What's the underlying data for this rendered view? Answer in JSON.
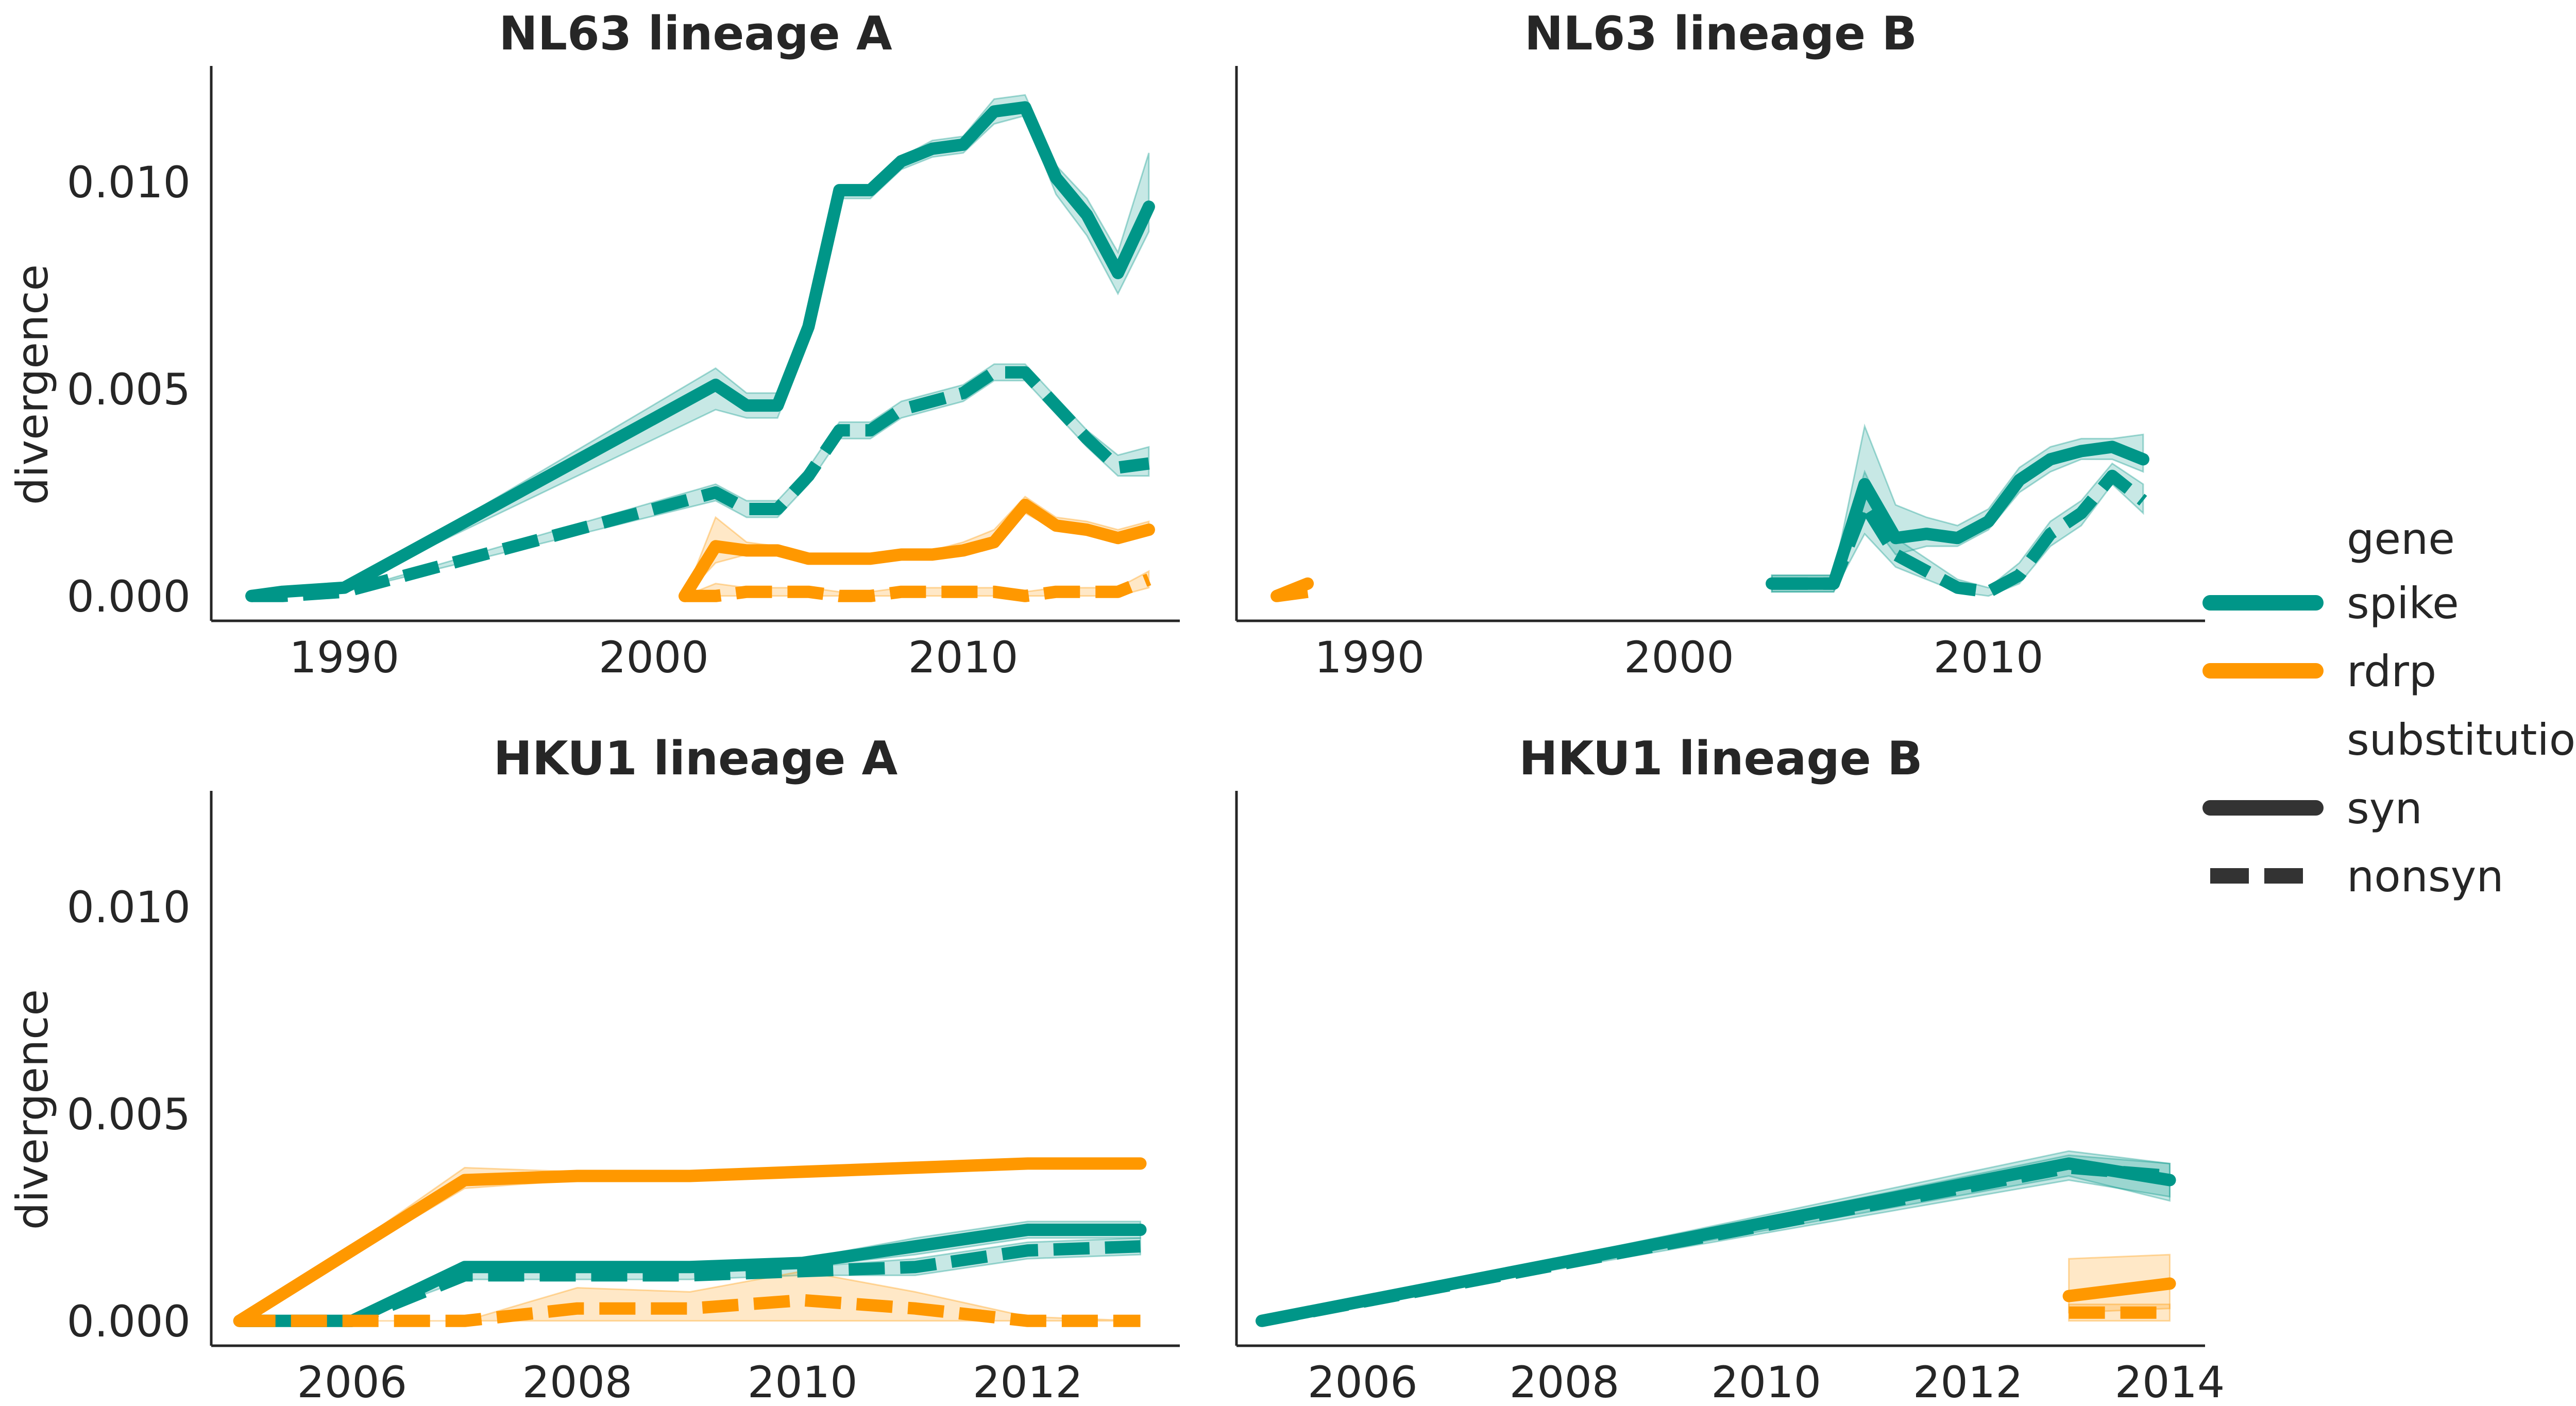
{
  "colors": {
    "spike": "#009688",
    "rdrp": "#FF9800",
    "legend_style": "#333333"
  },
  "legend": {
    "gene_title": "gene",
    "gene_items": [
      {
        "label": "spike",
        "color_key": "spike"
      },
      {
        "label": "rdrp",
        "color_key": "rdrp"
      }
    ],
    "substitution_title": "substitution",
    "substitution_items": [
      {
        "label": "syn",
        "style": "solid"
      },
      {
        "label": "nonsyn",
        "style": "dashed"
      }
    ]
  },
  "chart_data": [
    {
      "type": "line",
      "title": "NL63 lineage A",
      "ylabel": "divergence",
      "xlabel": "",
      "xlim": [
        1985.7,
        2017.0
      ],
      "ylim": [
        -0.0006,
        0.0128
      ],
      "xticks": [
        1990,
        2000,
        2010
      ],
      "yticks": [
        "0.000",
        "0.005",
        "0.010"
      ],
      "series": [
        {
          "gene": "spike",
          "substitution": "syn",
          "x": [
            1987,
            1988,
            1990,
            2002,
            2003,
            2004,
            2005,
            2006,
            2007,
            2008,
            2009,
            2010,
            2011,
            2012,
            2013,
            2014,
            2015,
            2016
          ],
          "y": [
            0.0,
            0.0001,
            0.0002,
            0.0051,
            0.0046,
            0.0046,
            0.0065,
            0.0098,
            0.0098,
            0.0105,
            0.0108,
            0.0109,
            0.0117,
            0.0118,
            0.0101,
            0.0092,
            0.0078,
            0.0094
          ],
          "lower": [
            0.0,
            0.0001,
            0.0002,
            0.0045,
            0.0043,
            0.0043,
            0.0062,
            0.0096,
            0.0096,
            0.0103,
            0.0106,
            0.0107,
            0.0114,
            0.0116,
            0.0097,
            0.0087,
            0.0073,
            0.0088
          ],
          "upper": [
            0.0,
            0.0001,
            0.0002,
            0.0055,
            0.0049,
            0.0049,
            0.0067,
            0.0099,
            0.0099,
            0.0106,
            0.011,
            0.0111,
            0.012,
            0.0121,
            0.0104,
            0.0096,
            0.0083,
            0.0107
          ]
        },
        {
          "gene": "spike",
          "substitution": "nonsyn",
          "x": [
            1987,
            1988,
            1990,
            2002,
            2003,
            2004,
            2005,
            2006,
            2007,
            2008,
            2009,
            2010,
            2011,
            2012,
            2013,
            2014,
            2015,
            2016
          ],
          "y": [
            0.0,
            0.0,
            0.0001,
            0.0025,
            0.0021,
            0.0021,
            0.0029,
            0.004,
            0.004,
            0.0045,
            0.0047,
            0.0049,
            0.0054,
            0.0054,
            0.0046,
            0.0038,
            0.0031,
            0.0032
          ],
          "lower": [
            0.0,
            0.0,
            0.0001,
            0.0023,
            0.0019,
            0.0019,
            0.0027,
            0.0038,
            0.0038,
            0.0043,
            0.0045,
            0.0047,
            0.0052,
            0.0052,
            0.0044,
            0.0036,
            0.0029,
            0.0029
          ],
          "upper": [
            0.0,
            0.0,
            0.0001,
            0.0027,
            0.0023,
            0.0023,
            0.0031,
            0.0042,
            0.0042,
            0.0047,
            0.0049,
            0.0051,
            0.0056,
            0.0056,
            0.0048,
            0.004,
            0.0034,
            0.0036
          ]
        },
        {
          "gene": "rdrp",
          "substitution": "syn",
          "x": [
            2001,
            2002,
            2003,
            2004,
            2005,
            2006,
            2007,
            2008,
            2009,
            2010,
            2011,
            2012,
            2013,
            2014,
            2015,
            2016
          ],
          "y": [
            0.0,
            0.0012,
            0.0011,
            0.0011,
            0.0009,
            0.0009,
            0.0009,
            0.001,
            0.001,
            0.0011,
            0.0013,
            0.0022,
            0.0017,
            0.0016,
            0.0014,
            0.0016
          ],
          "lower": [
            0.0,
            0.0008,
            0.001,
            0.001,
            0.0008,
            0.0008,
            0.0008,
            0.0009,
            0.0009,
            0.001,
            0.0012,
            0.002,
            0.0016,
            0.0015,
            0.0013,
            0.0015
          ],
          "upper": [
            0.0,
            0.0019,
            0.0013,
            0.0012,
            0.001,
            0.001,
            0.001,
            0.0011,
            0.0011,
            0.0013,
            0.0016,
            0.0024,
            0.0019,
            0.0018,
            0.0016,
            0.0018
          ]
        },
        {
          "gene": "rdrp",
          "substitution": "nonsyn",
          "x": [
            2001,
            2002,
            2003,
            2004,
            2005,
            2006,
            2007,
            2008,
            2009,
            2010,
            2011,
            2012,
            2013,
            2014,
            2015,
            2016
          ],
          "y": [
            0.0,
            0.0,
            0.0001,
            0.0001,
            0.0001,
            0.0,
            0.0,
            0.0001,
            0.0001,
            0.0001,
            0.0001,
            0.0,
            0.0001,
            0.0001,
            0.0001,
            0.0004
          ],
          "lower": [
            0.0,
            0.0,
            0.0,
            0.0,
            0.0,
            0.0,
            0.0,
            0.0,
            0.0,
            0.0,
            0.0,
            0.0,
            0.0,
            0.0,
            0.0,
            0.0002
          ],
          "upper": [
            0.0,
            0.0003,
            0.0002,
            0.0002,
            0.0002,
            0.0001,
            0.0001,
            0.0002,
            0.0002,
            0.0002,
            0.0002,
            0.0001,
            0.0002,
            0.0002,
            0.0002,
            0.0006
          ]
        }
      ]
    },
    {
      "type": "line",
      "title": "NL63 lineage B",
      "ylabel": "",
      "xlabel": "",
      "xlim": [
        1985.7,
        2017.0
      ],
      "ylim": [
        -0.0006,
        0.0128
      ],
      "xticks": [
        1990,
        2000,
        2010
      ],
      "yticks": [],
      "series": [
        {
          "gene": "spike",
          "substitution": "syn",
          "x": [
            2003,
            2004,
            2005,
            2006,
            2007,
            2008,
            2009,
            2010,
            2011,
            2012,
            2013,
            2014,
            2015
          ],
          "y": [
            0.0003,
            0.0003,
            0.0003,
            0.0027,
            0.0014,
            0.0015,
            0.0014,
            0.0018,
            0.0028,
            0.0033,
            0.0035,
            0.0036,
            0.0033
          ],
          "lower": [
            0.0001,
            0.0001,
            0.0001,
            0.002,
            0.001,
            0.0012,
            0.0012,
            0.0016,
            0.0025,
            0.003,
            0.0033,
            0.0033,
            0.003
          ],
          "upper": [
            0.0005,
            0.0005,
            0.0005,
            0.0041,
            0.0022,
            0.0019,
            0.0017,
            0.0021,
            0.0031,
            0.0036,
            0.0038,
            0.0038,
            0.0039
          ]
        },
        {
          "gene": "spike",
          "substitution": "nonsyn",
          "x": [
            2003,
            2004,
            2005,
            2006,
            2007,
            2008,
            2009,
            2010,
            2011,
            2012,
            2013,
            2014,
            2015
          ],
          "y": [
            0.0003,
            0.0003,
            0.0003,
            0.0022,
            0.001,
            0.0006,
            0.0002,
            0.0001,
            0.0005,
            0.0015,
            0.002,
            0.0029,
            0.0023
          ],
          "lower": [
            0.0001,
            0.0001,
            0.0001,
            0.0015,
            0.0007,
            0.0004,
            0.0001,
            0.0,
            0.0003,
            0.0012,
            0.0017,
            0.0027,
            0.002
          ],
          "upper": [
            0.0005,
            0.0005,
            0.0005,
            0.003,
            0.0014,
            0.0009,
            0.0004,
            0.0002,
            0.0008,
            0.0018,
            0.0023,
            0.0032,
            0.0027
          ]
        },
        {
          "gene": "rdrp",
          "substitution": "syn",
          "x": [
            1987,
            1988
          ],
          "y": [
            0.0,
            0.0003
          ],
          "lower": [
            0.0,
            0.0003
          ],
          "upper": [
            0.0,
            0.0003
          ]
        },
        {
          "gene": "rdrp",
          "substitution": "nonsyn",
          "x": [
            1987,
            1988
          ],
          "y": [
            0.0,
            0.0001
          ],
          "lower": [
            0.0,
            0.0001
          ],
          "upper": [
            0.0,
            0.0001
          ]
        }
      ]
    },
    {
      "type": "line",
      "title": "HKU1 lineage A",
      "ylabel": "divergence",
      "xlabel": "",
      "xlim": [
        2004.75,
        2013.35
      ],
      "ylim": [
        -0.0006,
        0.0128
      ],
      "xticks": [
        2006,
        2008,
        2010,
        2012
      ],
      "yticks": [
        "0.000",
        "0.005",
        "0.010"
      ],
      "series": [
        {
          "gene": "spike",
          "substitution": "syn",
          "x": [
            2005,
            2006,
            2007,
            2008,
            2009,
            2010,
            2011,
            2012,
            2013
          ],
          "y": [
            0.0,
            0.0,
            0.0013,
            0.0013,
            0.0013,
            0.0014,
            0.0018,
            0.0022,
            0.0022
          ],
          "lower": [
            0.0,
            0.0,
            0.0012,
            0.0012,
            0.0012,
            0.0013,
            0.0016,
            0.002,
            0.002
          ],
          "upper": [
            0.0,
            0.0,
            0.0014,
            0.0014,
            0.0014,
            0.0015,
            0.002,
            0.0024,
            0.0024
          ]
        },
        {
          "gene": "spike",
          "substitution": "nonsyn",
          "x": [
            2005,
            2006,
            2007,
            2008,
            2009,
            2010,
            2011,
            2012,
            2013
          ],
          "y": [
            0.0,
            0.0,
            0.0011,
            0.0011,
            0.0011,
            0.0012,
            0.0013,
            0.0017,
            0.0018
          ],
          "lower": [
            0.0,
            0.0,
            0.001,
            0.001,
            0.001,
            0.0011,
            0.0011,
            0.0015,
            0.0016
          ],
          "upper": [
            0.0,
            0.0,
            0.0012,
            0.0012,
            0.0012,
            0.0013,
            0.0015,
            0.0019,
            0.002
          ]
        },
        {
          "gene": "rdrp",
          "substitution": "syn",
          "x": [
            2005,
            2006,
            2007,
            2008,
            2009,
            2010,
            2011,
            2012,
            2013
          ],
          "y": [
            0.0,
            0.0017,
            0.0034,
            0.0035,
            0.0035,
            0.0036,
            0.0037,
            0.0038,
            0.0038
          ],
          "lower": [
            0.0,
            0.0016,
            0.0032,
            0.0034,
            0.0034,
            0.0035,
            0.0036,
            0.0037,
            0.0037
          ],
          "upper": [
            0.0,
            0.0018,
            0.0037,
            0.0036,
            0.0036,
            0.0037,
            0.0038,
            0.0039,
            0.0039
          ]
        },
        {
          "gene": "rdrp",
          "substitution": "nonsyn",
          "x": [
            2005,
            2006,
            2007,
            2008,
            2009,
            2010,
            2011,
            2012,
            2013
          ],
          "y": [
            0.0,
            0.0,
            0.0,
            0.0003,
            0.0003,
            0.0005,
            0.0003,
            0.0,
            0.0
          ],
          "lower": [
            0.0,
            0.0,
            0.0,
            0.0,
            0.0,
            0.0,
            0.0,
            0.0,
            0.0
          ],
          "upper": [
            0.0,
            0.0,
            0.0,
            0.0008,
            0.0007,
            0.0012,
            0.0007,
            0.0001,
            0.0
          ]
        }
      ]
    },
    {
      "type": "line",
      "title": "HKU1 lineage B",
      "ylabel": "",
      "xlabel": "",
      "xlim": [
        2004.75,
        2014.35
      ],
      "ylim": [
        -0.0006,
        0.0128
      ],
      "xticks": [
        2006,
        2008,
        2010,
        2012,
        2014
      ],
      "yticks": [],
      "series": [
        {
          "gene": "spike",
          "substitution": "syn",
          "x": [
            2005,
            2013,
            2014
          ],
          "y": [
            0.0,
            0.0038,
            0.0034
          ],
          "lower": [
            0.0,
            0.0035,
            0.0029
          ],
          "upper": [
            0.0,
            0.0041,
            0.0038
          ]
        },
        {
          "gene": "spike",
          "substitution": "nonsyn",
          "x": [
            2005,
            2013,
            2014
          ],
          "y": [
            0.0,
            0.0037,
            0.0035
          ],
          "lower": [
            0.0,
            0.0034,
            0.003
          ],
          "upper": [
            0.0,
            0.004,
            0.0038
          ]
        },
        {
          "gene": "rdrp",
          "substitution": "syn",
          "x": [
            2013,
            2014
          ],
          "y": [
            0.0006,
            0.0009
          ],
          "lower": [
            0.0002,
            0.0003
          ],
          "upper": [
            0.0015,
            0.0016
          ]
        },
        {
          "gene": "rdrp",
          "substitution": "nonsyn",
          "x": [
            2013,
            2014
          ],
          "y": [
            0.0002,
            0.0002
          ],
          "lower": [
            0.0,
            0.0
          ],
          "upper": [
            0.0004,
            0.0004
          ]
        }
      ]
    }
  ]
}
